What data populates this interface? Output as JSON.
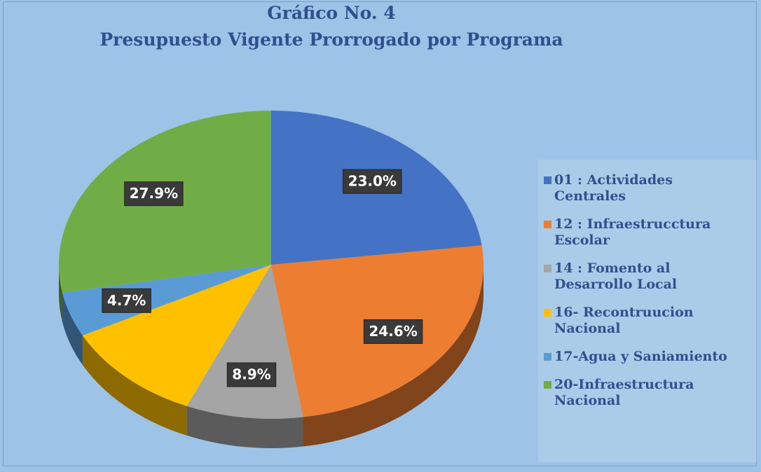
{
  "chart_data": {
    "type": "pie",
    "title": [
      "Gráfico No. 4",
      "Presupuesto Vigente Prorrogado por Programa"
    ],
    "categories": [
      "01 : Actividades Centrales",
      "12 : Infraestrucctura Escolar",
      "14 : Fomento al Desarrollo Local",
      "16- Recontruucion Nacional",
      "17-Agua y Saniamiento",
      "20-Infraestructura Nacional"
    ],
    "values": [
      23.0,
      24.6,
      8.9,
      10.9,
      4.7,
      27.9
    ],
    "value_labels": [
      "23.0%",
      "24.6%",
      "8.9%",
      null,
      "4.7%",
      "27.9%"
    ],
    "colors": [
      "#4472c4",
      "#ed7d31",
      "#a5a5a5",
      "#ffc000",
      "#5b9bd5",
      "#70ad47"
    ],
    "legend": "right"
  }
}
